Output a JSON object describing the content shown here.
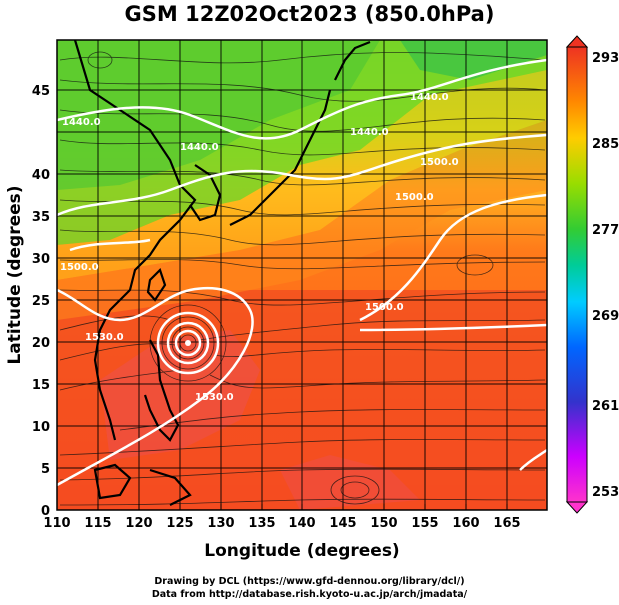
{
  "header": {
    "title": "GSM 12Z02Oct2023 (850.0hPa)"
  },
  "axes": {
    "xlabel": "Longitude (degrees)",
    "ylabel": "Latitude  (degrees)",
    "x_ticks": [
      "110",
      "115",
      "120",
      "125",
      "130",
      "135",
      "140",
      "145",
      "150",
      "155",
      "160",
      "165"
    ],
    "y_ticks": [
      "0",
      "5",
      "10",
      "15",
      "20",
      "25",
      "30",
      "35",
      "40",
      "45"
    ],
    "xlim": [
      110,
      170
    ],
    "ylim": [
      0,
      50
    ]
  },
  "colorbar": {
    "ticks": [
      "293",
      "285",
      "277",
      "269",
      "261",
      "253"
    ],
    "range": [
      253,
      293
    ],
    "colors": [
      "#ff33cc",
      "#cc00ff",
      "#3333cc",
      "#0066ff",
      "#00ccff",
      "#00cc99",
      "#33cc33",
      "#99dd00",
      "#ffcc00",
      "#ff8800",
      "#ee3322"
    ]
  },
  "contours": {
    "labels": [
      "1440.0",
      "1440.0",
      "1440.0",
      "1440.0",
      "1500.0",
      "1500.0",
      "1500.0",
      "1500.0",
      "1530.0",
      "1530.0"
    ]
  },
  "credits": {
    "line1": "Drawing by DCL (https://www.gfd-dennou.org/library/dcl/)",
    "line2": "Data from http://database.rish.kyoto-u.ac.jp/arch/jmadata/"
  }
}
